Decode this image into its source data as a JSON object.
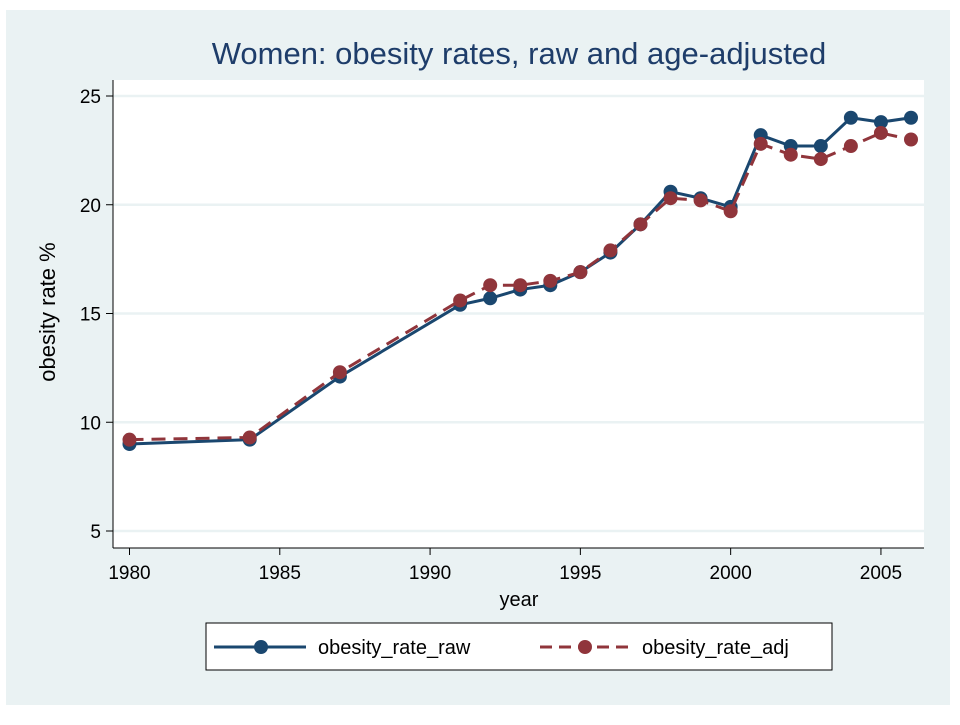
{
  "chart_data": {
    "type": "line",
    "title": "Women: obesity rates, raw and age-adjusted",
    "xlabel": "year",
    "ylabel": "obesity rate %",
    "xlim": [
      1980,
      2006
    ],
    "ylim": [
      5,
      25
    ],
    "xticks": [
      1980,
      1985,
      1990,
      1995,
      2000,
      2005
    ],
    "yticks": [
      5,
      10,
      15,
      20,
      25
    ],
    "xtick_labels": [
      "1980",
      "1985",
      "1990",
      "1995",
      "2000",
      "2005"
    ],
    "ytick_labels": [
      "5",
      "10",
      "15",
      "20",
      "25"
    ],
    "grid": "horizontal",
    "legend_position": "bottom",
    "colors": {
      "outer_background": "#eaf2f3",
      "plot_background": "#ffffff",
      "gridline": "#eaf2f3",
      "title": "#1e3d6a",
      "raw": "#1a476f",
      "adj": "#90353b"
    },
    "series": [
      {
        "name": "obesity_rate_raw",
        "style": "solid",
        "points": [
          [
            1980,
            9.0
          ],
          [
            1984,
            9.2
          ],
          [
            1987,
            12.1
          ],
          [
            1991,
            15.4
          ],
          [
            1992,
            15.7
          ],
          [
            1993,
            16.1
          ],
          [
            1994,
            16.3
          ],
          [
            1995,
            16.9
          ],
          [
            1996,
            17.8
          ],
          [
            1997,
            19.1
          ],
          [
            1998,
            20.6
          ],
          [
            1999,
            20.3
          ],
          [
            2000,
            19.9
          ],
          [
            2001,
            23.2
          ],
          [
            2002,
            22.7
          ],
          [
            2003,
            22.7
          ],
          [
            2004,
            24.0
          ],
          [
            2005,
            23.8
          ],
          [
            2006,
            24.0
          ]
        ]
      },
      {
        "name": "obesity_rate_adj",
        "style": "dashed",
        "points": [
          [
            1980,
            9.2
          ],
          [
            1984,
            9.3
          ],
          [
            1987,
            12.3
          ],
          [
            1991,
            15.6
          ],
          [
            1992,
            16.3
          ],
          [
            1993,
            16.3
          ],
          [
            1994,
            16.5
          ],
          [
            1995,
            16.9
          ],
          [
            1996,
            17.9
          ],
          [
            1997,
            19.1
          ],
          [
            1998,
            20.3
          ],
          [
            1999,
            20.2
          ],
          [
            2000,
            19.7
          ],
          [
            2001,
            22.8
          ],
          [
            2002,
            22.3
          ],
          [
            2003,
            22.1
          ],
          [
            2004,
            22.7
          ],
          [
            2005,
            23.3
          ],
          [
            2006,
            23.0
          ]
        ]
      }
    ]
  }
}
